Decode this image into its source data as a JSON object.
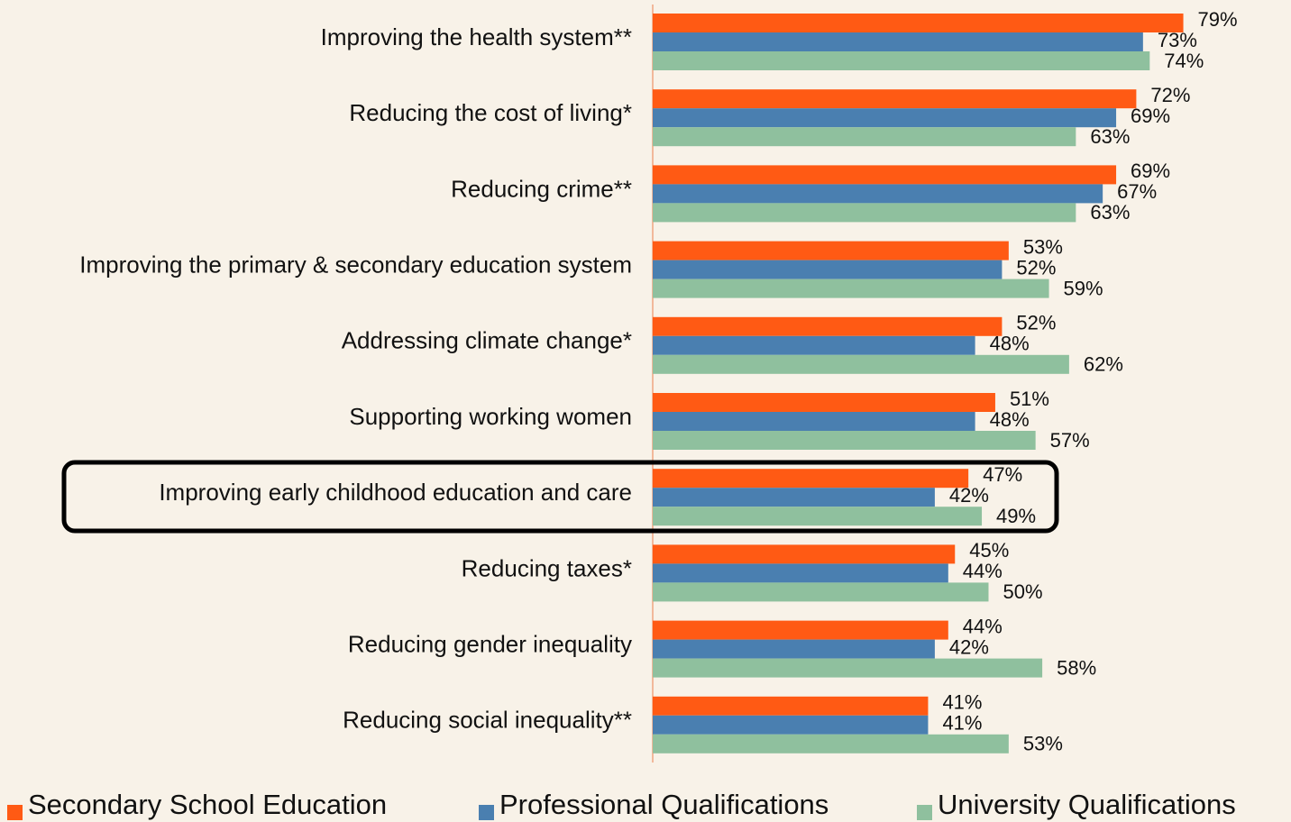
{
  "chart_data": {
    "type": "hbar",
    "categories": [
      "Improving the health system**",
      "Reducing the cost of living*",
      "Reducing crime**",
      "Improving the primary & secondary education system",
      "Addressing climate change*",
      "Supporting working women",
      "Improving early childhood education and care",
      "Reducing taxes*",
      "Reducing gender inequality",
      "Reducing social inequality**"
    ],
    "series": [
      {
        "name": "Secondary School Education",
        "color": "#ff5a14",
        "values": [
          79,
          72,
          69,
          53,
          52,
          51,
          47,
          45,
          44,
          41
        ],
        "value_labels": [
          "79%",
          "72%",
          "69%",
          "53%",
          "52%",
          "51%",
          "47%",
          "45%",
          "44%",
          "41%"
        ]
      },
      {
        "name": "Professional Qualifications",
        "color": "#4a7fb0",
        "values": [
          73,
          69,
          67,
          52,
          48,
          48,
          42,
          44,
          42,
          41
        ],
        "value_labels": [
          "73%",
          "69%",
          "67%",
          "52%",
          "48%",
          "48%",
          "42%",
          "44%",
          "42%",
          "41%"
        ]
      },
      {
        "name": "University Qualifications",
        "color": "#8fc09e",
        "values": [
          74,
          63,
          63,
          59,
          62,
          57,
          49,
          50,
          58,
          53
        ],
        "value_labels": [
          "74%",
          "63%",
          "63%",
          "59%",
          "62%",
          "57%",
          "49%",
          "50%",
          "58%",
          "53%"
        ]
      }
    ],
    "legend": "bottom"
  }
}
